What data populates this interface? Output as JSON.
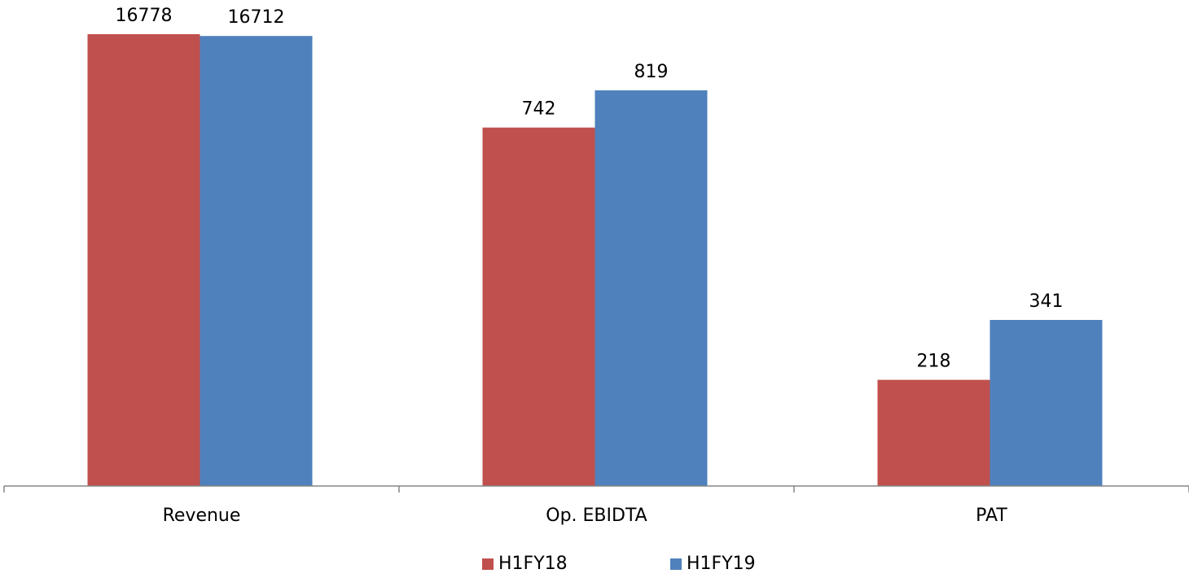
{
  "chart_data": {
    "type": "bar",
    "title": "",
    "xlabel": "",
    "ylabel": "",
    "categories": [
      "Revenue",
      "Op. EBIDTA",
      "PAT"
    ],
    "series": [
      {
        "name": "H1FY18",
        "color": "#c0504d",
        "values": [
          16778,
          742,
          218
        ]
      },
      {
        "name": "H1FY19",
        "color": "#4f81bd",
        "values": [
          16712,
          819,
          341
        ]
      }
    ],
    "data_labels": true,
    "grid": false,
    "legend": "bottom",
    "value_axis_visible": false
  }
}
